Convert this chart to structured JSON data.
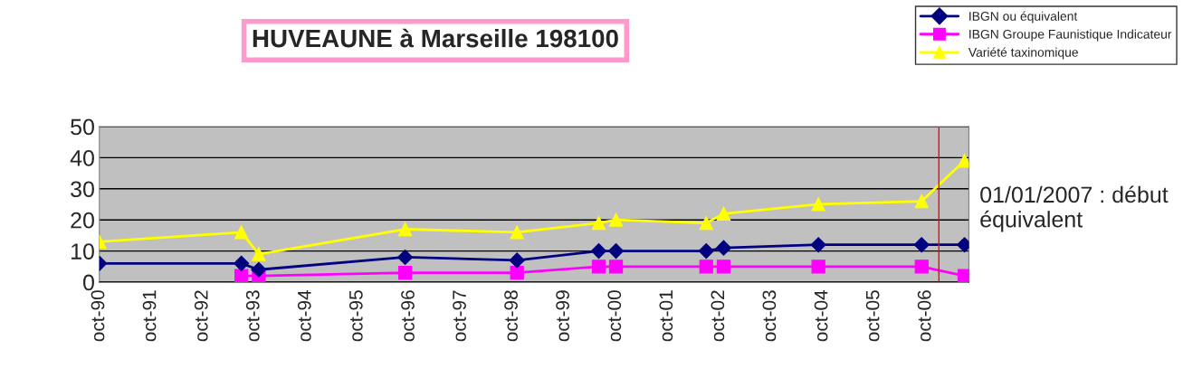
{
  "chart_data": {
    "type": "line",
    "title": "HUVEAUNE à Marseille 198100",
    "x": [
      "1990-10",
      "1993-07",
      "1993-11",
      "1996-09",
      "1998-11",
      "2000-06",
      "2000-10",
      "2002-07",
      "2002-11",
      "2004-09",
      "2006-09",
      "2007-07"
    ],
    "series": [
      {
        "name": "IBGN ou équivalent",
        "color": "#000080",
        "marker": "diamond",
        "values": [
          6,
          6,
          4,
          8,
          7,
          10,
          10,
          10,
          11,
          12,
          12,
          12
        ]
      },
      {
        "name": "IBGN Groupe Faunistique Indicateur",
        "color": "#ff00ff",
        "marker": "square",
        "values": [
          null,
          2,
          2,
          3,
          3,
          5,
          5,
          5,
          5,
          5,
          5,
          2
        ]
      },
      {
        "name": "Variété taxinomique",
        "color": "#ffff00",
        "marker": "triangle",
        "values": [
          13,
          16,
          9,
          17,
          16,
          19,
          20,
          19,
          22,
          25,
          26,
          39
        ]
      }
    ],
    "xlim": [
      "1990-10-01",
      "2007-08-01"
    ],
    "xticks": [
      {
        "value": "1990-10",
        "label": "oct-90"
      },
      {
        "value": "1991-10",
        "label": "oct-91"
      },
      {
        "value": "1992-10",
        "label": "oct-92"
      },
      {
        "value": "1993-10",
        "label": "oct-93"
      },
      {
        "value": "1994-10",
        "label": "oct-94"
      },
      {
        "value": "1995-10",
        "label": "oct-95"
      },
      {
        "value": "1996-10",
        "label": "oct-96"
      },
      {
        "value": "1997-10",
        "label": "oct-97"
      },
      {
        "value": "1998-10",
        "label": "oct-98"
      },
      {
        "value": "1999-10",
        "label": "oct-99"
      },
      {
        "value": "2000-10",
        "label": "oct-00"
      },
      {
        "value": "2001-10",
        "label": "oct-01"
      },
      {
        "value": "2002-10",
        "label": "oct-02"
      },
      {
        "value": "2003-10",
        "label": "oct-03"
      },
      {
        "value": "2004-10",
        "label": "oct-04"
      },
      {
        "value": "2005-10",
        "label": "oct-05"
      },
      {
        "value": "2006-10",
        "label": "oct-06"
      }
    ],
    "ylim": [
      0,
      50
    ],
    "yticks": [
      0,
      10,
      20,
      30,
      40,
      50
    ],
    "ref_lines": [
      {
        "axis": "x",
        "value": "2007-01-01",
        "label": "01/01/2007 : début équivalent",
        "color": "#ff0000"
      }
    ],
    "grid": "y",
    "legend": "top right"
  }
}
